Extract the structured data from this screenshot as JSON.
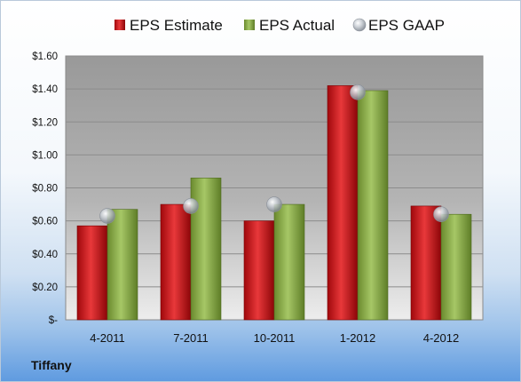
{
  "company": "Tiffany",
  "colors": {
    "estimate": "#d8262a",
    "actual": "#8db24a",
    "gaap": "#b8bec6"
  },
  "chart_data": {
    "type": "bar",
    "categories": [
      "4-2011",
      "7-2011",
      "10-2011",
      "1-2012",
      "4-2012"
    ],
    "series": [
      {
        "name": "EPS Estimate",
        "values": [
          0.57,
          0.7,
          0.6,
          1.42,
          0.69
        ]
      },
      {
        "name": "EPS Actual",
        "values": [
          0.67,
          0.86,
          0.7,
          1.39,
          0.64
        ]
      },
      {
        "name": "EPS GAAP",
        "values": [
          0.63,
          0.69,
          0.7,
          1.38,
          0.64
        ],
        "style": "marker"
      }
    ],
    "ylim": [
      0,
      1.6
    ],
    "yticks": [
      0,
      0.2,
      0.4,
      0.6,
      0.8,
      1.0,
      1.2,
      1.4,
      1.6
    ],
    "ytick_labels": [
      "$-",
      "$0.20",
      "$0.40",
      "$0.60",
      "$0.80",
      "$1.00",
      "$1.20",
      "$1.40",
      "$1.60"
    ],
    "legend": "top",
    "grid": true
  }
}
